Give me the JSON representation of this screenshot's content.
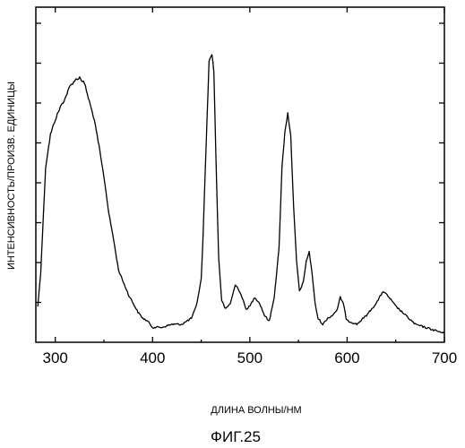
{
  "figure_label": "ФИГ.25",
  "chart_data": {
    "type": "line",
    "title": "",
    "xlabel": "ДЛИНА ВОЛНЫ/НМ",
    "ylabel": "ИНТЕНСИВНОСТЬ/ПРОИЗВ. ЕДИНИЦЫ",
    "xlim": [
      280,
      700
    ],
    "ylim": [
      0,
      100
    ],
    "x_ticks": [
      300,
      400,
      500,
      600,
      700
    ],
    "y_tick_labels_shown": false,
    "grid": false,
    "legend": "none",
    "line_color": "#000000",
    "series": [
      {
        "x": [
          282,
          285,
          290,
          295,
          300,
          305,
          310,
          315,
          320,
          325,
          330,
          335,
          340,
          345,
          350,
          355,
          360,
          365,
          370,
          375,
          380,
          385,
          390,
          395,
          400,
          410,
          420,
          430,
          440,
          445,
          450,
          452,
          455,
          458,
          461,
          463,
          465,
          468,
          471,
          475,
          480,
          485,
          488,
          492,
          496,
          500,
          505,
          510,
          515,
          520,
          525,
          530,
          533,
          536,
          539,
          542,
          545,
          548,
          551,
          555,
          558,
          561,
          564,
          567,
          570,
          575,
          580,
          585,
          590,
          593,
          596,
          599,
          602,
          610,
          620,
          630,
          637,
          643,
          650,
          660,
          670,
          680,
          690,
          700
        ],
        "y": [
          9,
          20,
          55,
          66,
          71,
          75,
          78,
          82,
          84,
          85,
          83,
          77,
          71,
          62,
          52,
          40,
          31,
          21,
          17,
          13,
          10,
          7,
          5,
          4,
          2,
          2,
          3,
          3,
          5,
          9,
          18,
          33,
          62,
          90,
          93,
          87,
          60,
          25,
          11,
          8,
          10,
          16,
          15,
          12,
          8,
          9,
          12,
          10,
          6,
          4,
          12,
          28,
          55,
          67,
          73,
          66,
          42,
          24,
          14,
          17,
          24,
          27,
          20,
          10,
          5,
          3,
          5,
          6,
          8,
          12,
          10,
          5,
          4,
          3,
          6,
          10,
          14,
          12,
          9,
          6,
          3,
          2,
          1,
          0
        ]
      }
    ]
  }
}
